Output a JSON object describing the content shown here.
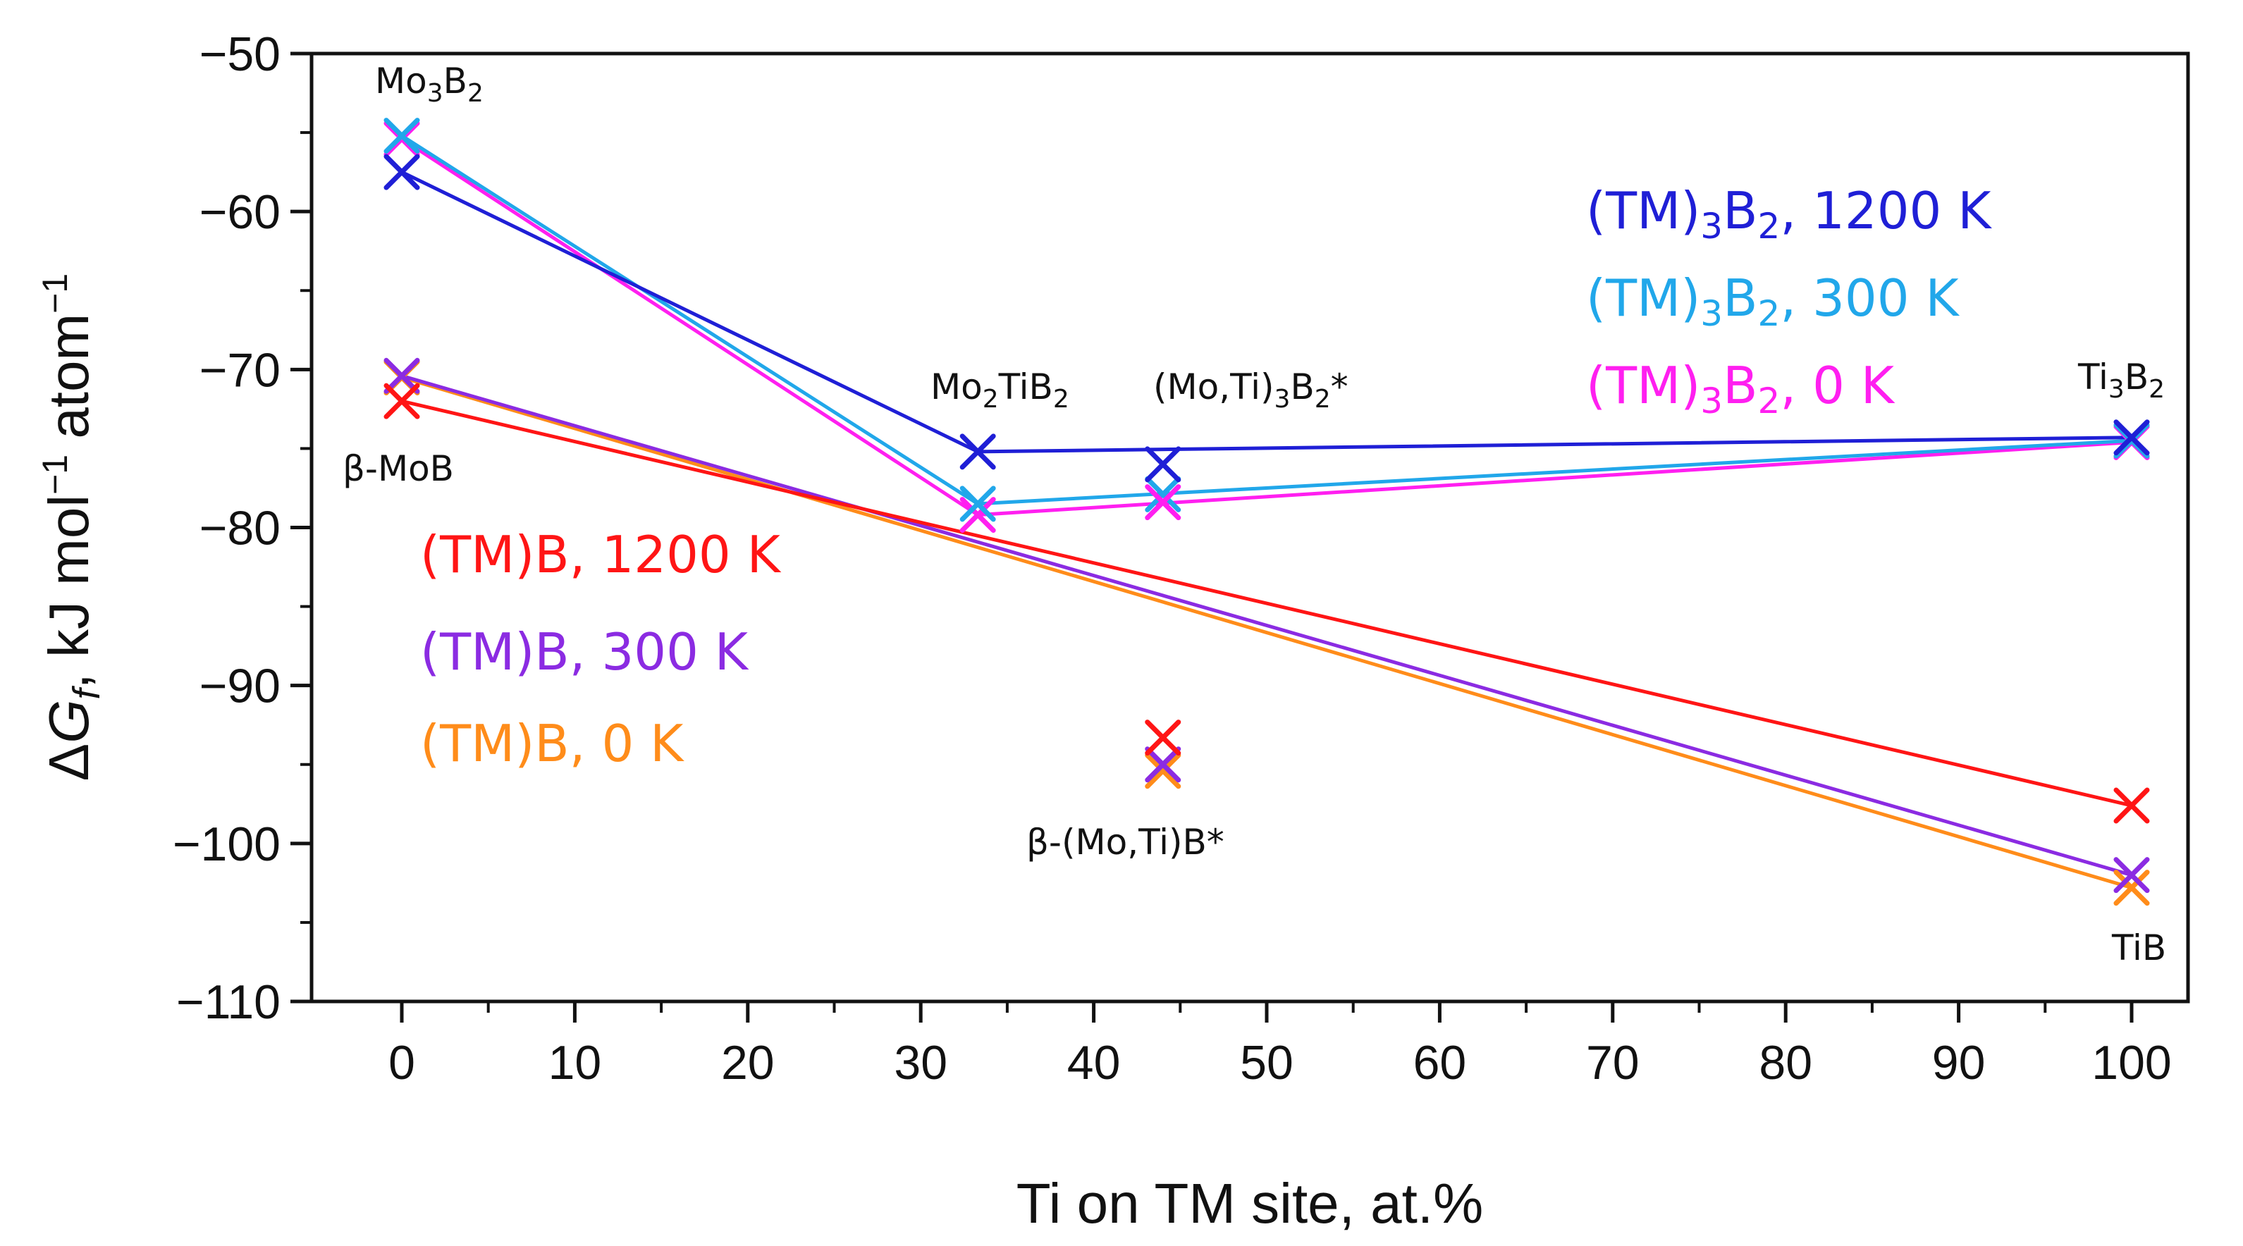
{
  "chart_data": {
    "type": "line",
    "xlabel": "Ti on TM site, at.%",
    "ylabel": "ΔGf, kJ mol⁻¹ atom⁻¹",
    "ylabel_parts": {
      "delta": "Δ",
      "G": "G",
      "sub": "f",
      "comma": ",",
      "unit1": " kJ mol",
      "exp1": "−1",
      "unit2": " atom",
      "exp2": "−1"
    },
    "xlim": [
      -5,
      103
    ],
    "ylim": [
      -110,
      -50
    ],
    "xticks": [
      0,
      10,
      20,
      30,
      40,
      50,
      60,
      70,
      80,
      90,
      100
    ],
    "yticks": [
      -50,
      -60,
      -70,
      -80,
      -90,
      -100,
      -110
    ],
    "xtick_labels": [
      "0",
      "10",
      "20",
      "30",
      "40",
      "50",
      "60",
      "70",
      "80",
      "90",
      "100"
    ],
    "ytick_labels": [
      "−50",
      "−60",
      "−70",
      "−80",
      "−90",
      "−100",
      "−110"
    ],
    "series": [
      {
        "name": "(TM)3B2, 1200 K",
        "color": "#1f1fd6",
        "x": [
          0,
          33.3,
          100
        ],
        "y": [
          -57.5,
          -75.2,
          -74.3
        ]
      },
      {
        "name": "(TM)3B2, 300 K",
        "color": "#21a7ea",
        "x": [
          0,
          33.3,
          100
        ],
        "y": [
          -55.2,
          -78.5,
          -74.5
        ]
      },
      {
        "name": "(TM)3B2, 0 K",
        "color": "#ff1ff0",
        "x": [
          0,
          33.3,
          100
        ],
        "y": [
          -55.4,
          -79.2,
          -74.6
        ]
      },
      {
        "name": "(TM)B, 1200 K",
        "color": "#ff1515",
        "x": [
          0,
          100
        ],
        "y": [
          -72.0,
          -97.6
        ]
      },
      {
        "name": "(TM)B, 300 K",
        "color": "#8b2be2",
        "x": [
          0,
          100
        ],
        "y": [
          -70.4,
          -102.0
        ]
      },
      {
        "name": "(TM)B, 0 K",
        "color": "#ff8c1a",
        "x": [
          0,
          100
        ],
        "y": [
          -70.5,
          -102.8
        ]
      }
    ],
    "extra_points": [
      {
        "series": "(TM)3B2, 300 K",
        "color": "#21a7ea",
        "x": 44,
        "y": -77.9
      },
      {
        "series": "(TM)3B2, 0 K",
        "color": "#ff1ff0",
        "x": 44,
        "y": -78.4
      },
      {
        "series": "(TM)3B2, 1200 K",
        "color": "#1f1fd6",
        "x": 44,
        "y": -76.0
      },
      {
        "series": "(TM)B, 0 K",
        "color": "#ff8c1a",
        "x": 44,
        "y": -95.4
      },
      {
        "series": "(TM)B, 300 K",
        "color": "#8b2be2",
        "x": 44,
        "y": -95.0
      },
      {
        "series": "(TM)B, 1200 K",
        "color": "#ff1515",
        "x": 44,
        "y": -93.3
      }
    ],
    "legend": {
      "placement_upper": "top-right",
      "placement_lower": "middle-left",
      "items": [
        {
          "base": "(TM)",
          "sub": "3",
          "mid": "B",
          "sub2": "2",
          "tail": ", 1200 K",
          "color": "#1f1fd6"
        },
        {
          "base": "(TM)",
          "sub": "3",
          "mid": "B",
          "sub2": "2",
          "tail": ", 300 K",
          "color": "#21a7ea"
        },
        {
          "base": "(TM)",
          "sub": "3",
          "mid": "B",
          "sub2": "2",
          "tail": ", 0 K",
          "color": "#ff1ff0"
        },
        {
          "base": "(TM)B, 1200 K",
          "color": "#ff1515"
        },
        {
          "base": "(TM)B, 300 K",
          "color": "#8b2be2"
        },
        {
          "base": "(TM)B, 0 K",
          "color": "#ff8c1a"
        }
      ]
    },
    "annotations": [
      {
        "parts": [
          "Mo",
          "3",
          "B",
          "2"
        ],
        "text": "Mo3B2"
      },
      {
        "parts": [
          "β-MoB"
        ],
        "text": "β-MoB"
      },
      {
        "parts": [
          "Mo",
          "2",
          "TiB",
          "2"
        ],
        "text": "Mo2TiB2"
      },
      {
        "parts": [
          "(Mo,Ti)",
          "3",
          "B",
          "2",
          "*"
        ],
        "text": "(Mo,Ti)3B2*"
      },
      {
        "parts": [
          "Ti",
          "3",
          "B",
          "2"
        ],
        "text": "Ti3B2"
      },
      {
        "parts": [
          "β-(Mo,Ti)B*"
        ],
        "text": "β-(Mo,Ti)B*"
      },
      {
        "parts": [
          "TiB"
        ],
        "text": "TiB"
      }
    ]
  }
}
